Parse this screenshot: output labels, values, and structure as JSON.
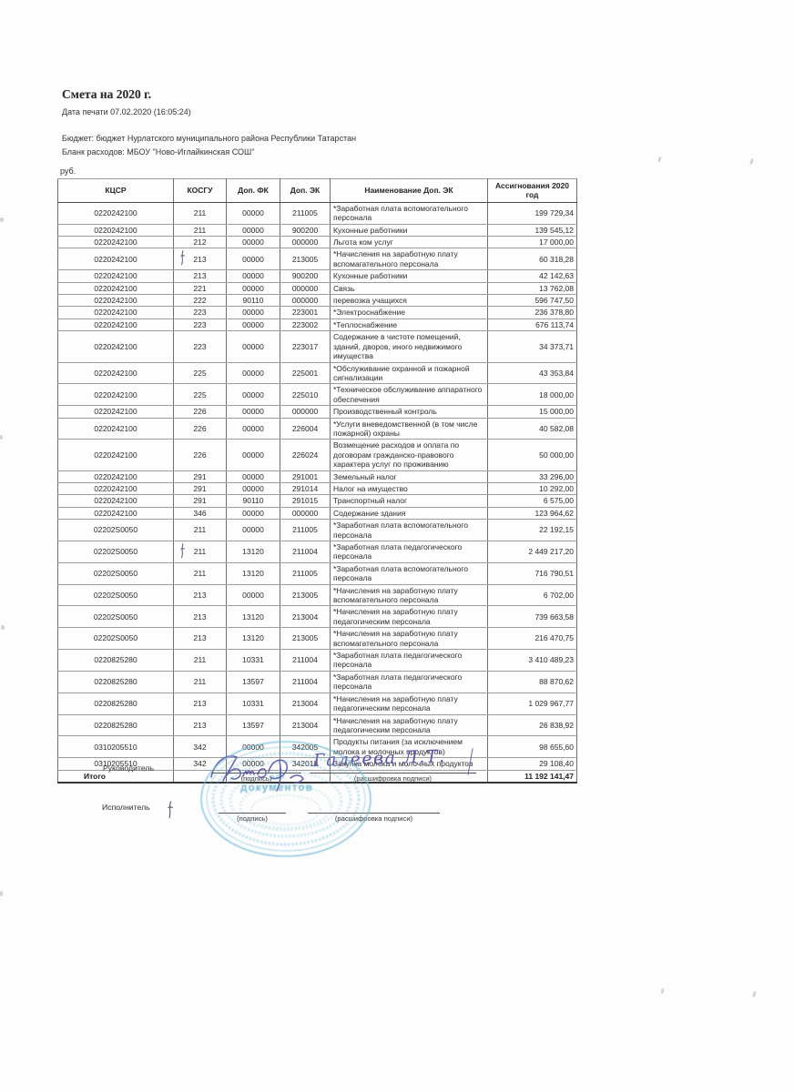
{
  "document": {
    "title": "Смета на 2020 г.",
    "print_date": "Дата печати 07.02.2020 (16:05:24)",
    "budget_line": "Бюджет: бюджет Нурлатского муниципального района Республики Татарстан",
    "form_line": "Бланк расходов: МБОУ \"Ново-Иглайкинская СОШ\"",
    "currency_label": "руб."
  },
  "table": {
    "headers": [
      "КЦСР",
      "КОСГУ",
      "Доп. ФК",
      "Доп. ЭК",
      "Наименование Доп. ЭК",
      "Ассигнования 2020 год"
    ],
    "rows": [
      {
        "kcsr": "0220242100",
        "kosgu": "211",
        "dop_fk": "00000",
        "dop_ek": "211005",
        "name": "*Заработная плата вспомогательного персонала",
        "amount": "199 729,34"
      },
      {
        "kcsr": "0220242100",
        "kosgu": "211",
        "dop_fk": "00000",
        "dop_ek": "900200",
        "name": "Кухонные работники",
        "amount": "139 545,12"
      },
      {
        "kcsr": "0220242100",
        "kosgu": "212",
        "dop_fk": "00000",
        "dop_ek": "000000",
        "name": "Льгота ком услуг",
        "amount": "17 000,00"
      },
      {
        "kcsr": "0220242100",
        "kosgu": "213",
        "dop_fk": "00000",
        "dop_ek": "213005",
        "name": "*Начисления на заработную плату вспомагательного персонала",
        "amount": "60 318,28",
        "pen_mark": true
      },
      {
        "kcsr": "0220242100",
        "kosgu": "213",
        "dop_fk": "00000",
        "dop_ek": "900200",
        "name": "Кухонные работники",
        "amount": "42 142,63"
      },
      {
        "kcsr": "0220242100",
        "kosgu": "221",
        "dop_fk": "00000",
        "dop_ek": "000000",
        "name": "Связь",
        "amount": "13 762,08"
      },
      {
        "kcsr": "0220242100",
        "kosgu": "222",
        "dop_fk": "90110",
        "dop_ek": "000000",
        "name": "перевозка учащихся",
        "amount": "596 747,50"
      },
      {
        "kcsr": "0220242100",
        "kosgu": "223",
        "dop_fk": "00000",
        "dop_ek": "223001",
        "name": "*Электроснабжение",
        "amount": "236 378,80"
      },
      {
        "kcsr": "0220242100",
        "kosgu": "223",
        "dop_fk": "00000",
        "dop_ek": "223002",
        "name": "*Теплоснабжение",
        "amount": "676 113,74"
      },
      {
        "kcsr": "0220242100",
        "kosgu": "223",
        "dop_fk": "00000",
        "dop_ek": "223017",
        "name": "Содержание в чистоте помещений, зданий, дворов, иного недвижимого имущества",
        "amount": "34 373,71"
      },
      {
        "kcsr": "0220242100",
        "kosgu": "225",
        "dop_fk": "00000",
        "dop_ek": "225001",
        "name": "*Обслуживание охранной и пожарной сигнализации",
        "amount": "43 353,84"
      },
      {
        "kcsr": "0220242100",
        "kosgu": "225",
        "dop_fk": "00000",
        "dop_ek": "225010",
        "name": "*Техническое обслуживание аппаратного обеспечения",
        "amount": "18 000,00"
      },
      {
        "kcsr": "0220242100",
        "kosgu": "226",
        "dop_fk": "00000",
        "dop_ek": "000000",
        "name": "Производственный контроль",
        "amount": "15 000,00"
      },
      {
        "kcsr": "0220242100",
        "kosgu": "226",
        "dop_fk": "00000",
        "dop_ek": "226004",
        "name": "*Услуги вневедомственной (в том числе пожарной) охраны",
        "amount": "40 582,08"
      },
      {
        "kcsr": "0220242100",
        "kosgu": "226",
        "dop_fk": "00000",
        "dop_ek": "226024",
        "name": "Возмещение расходов и оплата по договорам гражданско-правового характера услуг по проживанию",
        "amount": "50 000,00"
      },
      {
        "kcsr": "0220242100",
        "kosgu": "291",
        "dop_fk": "00000",
        "dop_ek": "291001",
        "name": "Земельный налог",
        "amount": "33 296,00"
      },
      {
        "kcsr": "0220242100",
        "kosgu": "291",
        "dop_fk": "00000",
        "dop_ek": "291014",
        "name": "Налог на имущество",
        "amount": "10 292,00"
      },
      {
        "kcsr": "0220242100",
        "kosgu": "291",
        "dop_fk": "90110",
        "dop_ek": "291015",
        "name": "Транспортный налог",
        "amount": "6 575,00"
      },
      {
        "kcsr": "0220242100",
        "kosgu": "346",
        "dop_fk": "00000",
        "dop_ek": "000000",
        "name": "Содержание здания",
        "amount": "123 964,62"
      },
      {
        "kcsr": "02202S0050",
        "kosgu": "211",
        "dop_fk": "00000",
        "dop_ek": "211005",
        "name": "*Заработная плата вспомогательного персонала",
        "amount": "22 192,15"
      },
      {
        "kcsr": "02202S0050",
        "kosgu": "211",
        "dop_fk": "13120",
        "dop_ek": "211004",
        "name": "*Заработная плата педагогического персонала",
        "amount": "2 449 217,20",
        "pen_mark": true
      },
      {
        "kcsr": "02202S0050",
        "kosgu": "211",
        "dop_fk": "13120",
        "dop_ek": "211005",
        "name": "*Заработная плата вспомогательного персонала",
        "amount": "716 790,51"
      },
      {
        "kcsr": "02202S0050",
        "kosgu": "213",
        "dop_fk": "00000",
        "dop_ek": "213005",
        "name": "*Начисления на заработную плату вспомагательного персонала",
        "amount": "6 702,00"
      },
      {
        "kcsr": "02202S0050",
        "kosgu": "213",
        "dop_fk": "13120",
        "dop_ek": "213004",
        "name": "*Начисления на заработную плату педагогическим персонала",
        "amount": "739 663,58"
      },
      {
        "kcsr": "02202S0050",
        "kosgu": "213",
        "dop_fk": "13120",
        "dop_ek": "213005",
        "name": "*Начисления на заработную плату вспомагательного персонала",
        "amount": "216 470,75"
      },
      {
        "kcsr": "0220825280",
        "kosgu": "211",
        "dop_fk": "10331",
        "dop_ek": "211004",
        "name": "*Заработная плата педагогического персонала",
        "amount": "3 410 489,23"
      },
      {
        "kcsr": "0220825280",
        "kosgu": "211",
        "dop_fk": "13597",
        "dop_ek": "211004",
        "name": "*Заработная плата педагогического персонала",
        "amount": "88 870,62"
      },
      {
        "kcsr": "0220825280",
        "kosgu": "213",
        "dop_fk": "10331",
        "dop_ek": "213004",
        "name": "*Начисления на заработную плату педагогическим персонала",
        "amount": "1 029 967,77"
      },
      {
        "kcsr": "0220825280",
        "kosgu": "213",
        "dop_fk": "13597",
        "dop_ek": "213004",
        "name": "*Начисления на заработную плату педагогическим персонала",
        "amount": "26 838,92"
      },
      {
        "kcsr": "0310205510",
        "kosgu": "342",
        "dop_fk": "00000",
        "dop_ek": "342005",
        "name": "Продукты питания (за исключением молока и молочных продуктов)",
        "amount": "98 655,60"
      },
      {
        "kcsr": "0310205510",
        "kosgu": "342",
        "dop_fk": "00000",
        "dop_ek": "342018",
        "name": "Закупка молока и молочных продуктов",
        "amount": "29 108,40"
      }
    ],
    "total_label": "Итого",
    "total_value": "11 192 141,47"
  },
  "signatures": {
    "head_label": "Руководитель",
    "executor_label": "Исполнитель",
    "sign_caption": "(подпись)",
    "transcript_caption": "(расшифровка подписи)",
    "head_transcript": "Галеева Л.Т."
  },
  "stamp": {
    "top_word": "для",
    "bottom_word": "документов"
  }
}
